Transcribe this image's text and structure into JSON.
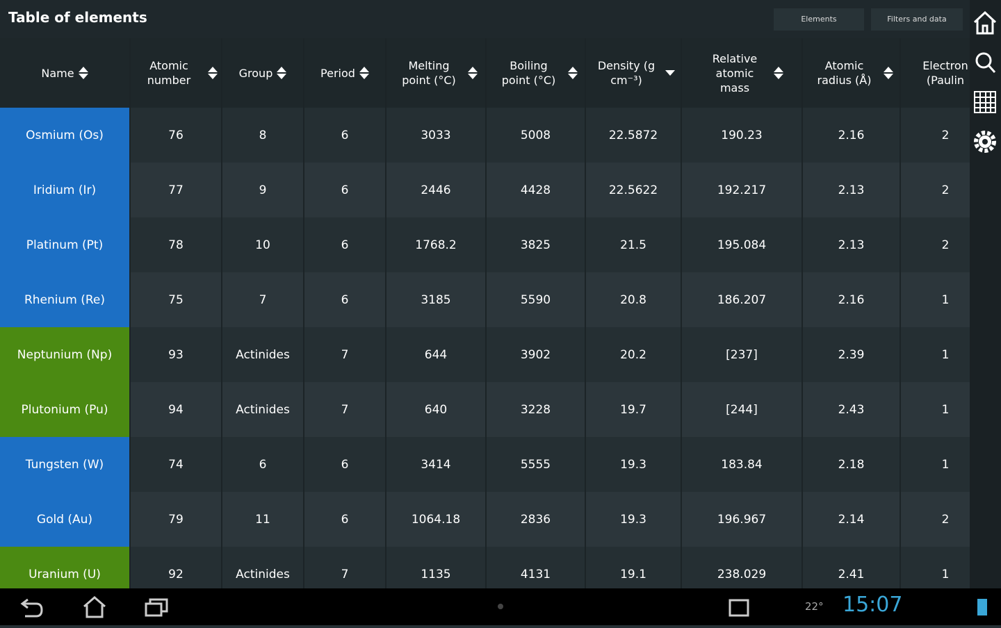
{
  "header": {
    "title": "Table of elements",
    "tabs": [
      "Elements",
      "Filters and data"
    ]
  },
  "table": {
    "columns": [
      "Name",
      "Atomic number",
      "Group",
      "Period",
      "Melting point (°C)",
      "Boiling point (°C)",
      "Density (g cm⁻³)",
      "Relative atomic mass",
      "Atomic radius (Å)",
      "Electron (Paulin"
    ],
    "rows": [
      {
        "color": "#1c6fc4",
        "cells": [
          "Osmium (Os)",
          "76",
          "8",
          "6",
          "3033",
          "5008",
          "22.5872",
          "190.23",
          "2.16",
          "2"
        ]
      },
      {
        "color": "#1c6fc4",
        "cells": [
          "Iridium (Ir)",
          "77",
          "9",
          "6",
          "2446",
          "4428",
          "22.5622",
          "192.217",
          "2.13",
          "2"
        ]
      },
      {
        "color": "#1c6fc4",
        "cells": [
          "Platinum (Pt)",
          "78",
          "10",
          "6",
          "1768.2",
          "3825",
          "21.5",
          "195.084",
          "2.13",
          "2"
        ]
      },
      {
        "color": "#1c6fc4",
        "cells": [
          "Rhenium (Re)",
          "75",
          "7",
          "6",
          "3185",
          "5590",
          "20.8",
          "186.207",
          "2.16",
          "1"
        ]
      },
      {
        "color": "#4b8a12",
        "cells": [
          "Neptunium (Np)",
          "93",
          "Actinides",
          "7",
          "644",
          "3902",
          "20.2",
          "[237]",
          "2.39",
          "1"
        ]
      },
      {
        "color": "#4b8a12",
        "cells": [
          "Plutonium (Pu)",
          "94",
          "Actinides",
          "7",
          "640",
          "3228",
          "19.7",
          "[244]",
          "2.43",
          "1"
        ]
      },
      {
        "color": "#1c6fc4",
        "cells": [
          "Tungsten (W)",
          "74",
          "6",
          "6",
          "3414",
          "5555",
          "19.3",
          "183.84",
          "2.18",
          "1"
        ]
      },
      {
        "color": "#1c6fc4",
        "cells": [
          "Gold (Au)",
          "79",
          "11",
          "6",
          "1064.18",
          "2836",
          "19.3",
          "196.967",
          "2.14",
          "2"
        ]
      },
      {
        "color": "#4b8a12",
        "cells": [
          "Uranium (U)",
          "92",
          "Actinides",
          "7",
          "1135",
          "4131",
          "19.1",
          "238.029",
          "2.41",
          "1"
        ]
      }
    ]
  },
  "status_bar": {
    "temperature": "22°",
    "time": "15:07"
  }
}
